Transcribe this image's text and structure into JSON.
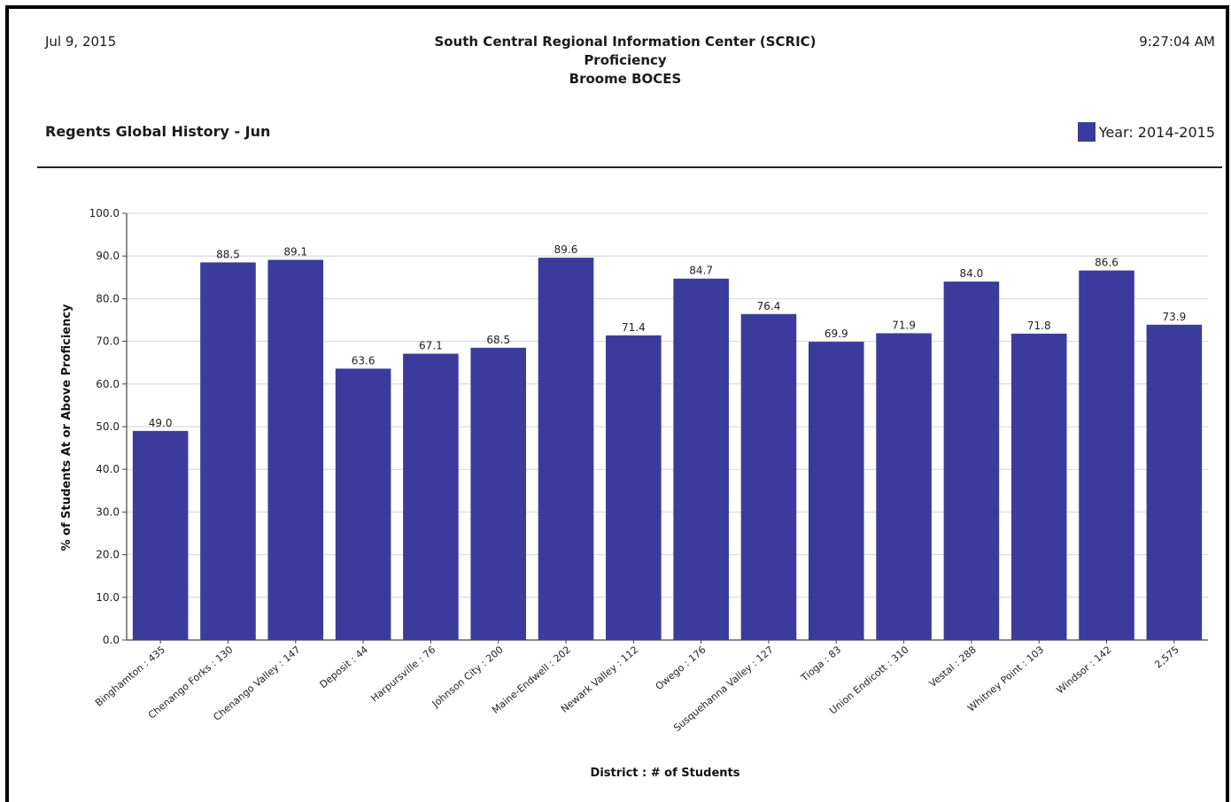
{
  "header": {
    "date": "Jul 9, 2015",
    "time": "9:27:04 AM",
    "org": "South Central Regional Information Center (SCRIC)",
    "subtitle": "Proficiency",
    "region": "Broome BOCES"
  },
  "legend": {
    "label": "Year: 2014-2015",
    "color": "#3b3b9e"
  },
  "chart_data": {
    "type": "bar",
    "title": "Regents Global History - Jun",
    "xlabel": "District : # of Students",
    "ylabel": "% of Students At or Above Proficiency",
    "ylim": [
      0,
      100
    ],
    "yticks": [
      "0.0",
      "10.0",
      "20.0",
      "30.0",
      "40.0",
      "50.0",
      "60.0",
      "70.0",
      "80.0",
      "90.0",
      "100.0"
    ],
    "grid": true,
    "legend_position": "top-right",
    "bar_color": "#3b3b9e",
    "categories": [
      "Binghamton : 435",
      "Chenango Forks : 130",
      "Chenango Valley : 147",
      "Deposit : 44",
      "Harpursville : 76",
      "Johnson City : 200",
      "Maine-Endwell : 202",
      "Newark Valley : 112",
      "Owego : 176",
      "Susquehanna Valley : 127",
      "Tioga : 83",
      "Union Endicott : 310",
      "Vestal : 288",
      "Whitney Point : 103",
      "Windsor : 142",
      "2,575"
    ],
    "series": [
      {
        "name": "Year: 2014-2015",
        "values": [
          49.0,
          88.5,
          89.1,
          63.6,
          67.1,
          68.5,
          89.6,
          71.4,
          84.7,
          76.4,
          69.9,
          71.9,
          84.0,
          71.8,
          86.6,
          73.9
        ],
        "labels": [
          "49.0",
          "88.5",
          "89.1",
          "63.6",
          "67.1",
          "68.5",
          "89.6",
          "71.4",
          "84.7",
          "76.4",
          "69.9",
          "71.9",
          "84.0",
          "71.8",
          "86.6",
          "73.9"
        ]
      }
    ]
  }
}
